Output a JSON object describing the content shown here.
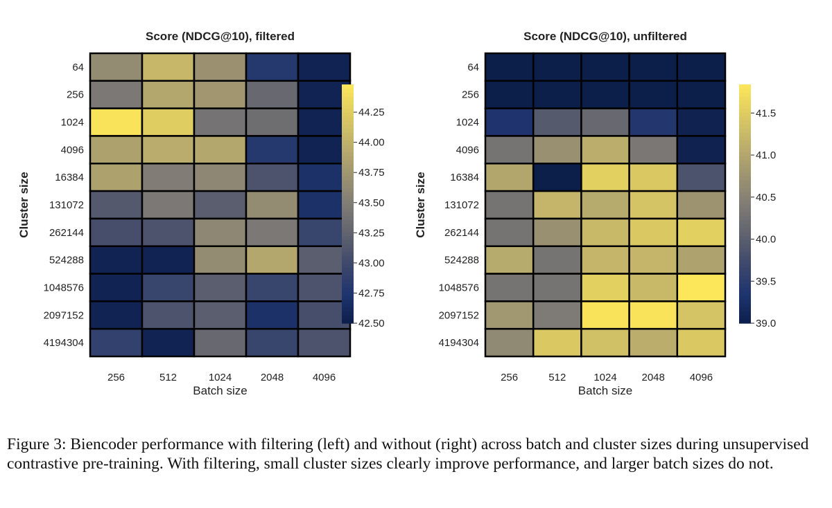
{
  "chart_data": [
    {
      "type": "heatmap",
      "title": "Score (NDCG@10), filtered",
      "xlabel": "Batch size",
      "ylabel": "Cluster size",
      "x_categories": [
        "256",
        "512",
        "1024",
        "2048",
        "4096"
      ],
      "y_categories": [
        "64",
        "256",
        "1024",
        "4096",
        "16384",
        "131072",
        "262144",
        "524288",
        "1048576",
        "2097152",
        "4194304"
      ],
      "values": [
        [
          43.65,
          44.05,
          43.7,
          42.8,
          42.55
        ],
        [
          43.45,
          43.9,
          43.75,
          43.3,
          42.55
        ],
        [
          44.45,
          44.25,
          43.4,
          43.35,
          42.55
        ],
        [
          43.85,
          43.95,
          43.9,
          42.8,
          42.55
        ],
        [
          43.85,
          43.5,
          43.6,
          43.1,
          42.7
        ],
        [
          43.15,
          43.45,
          43.2,
          43.65,
          42.7
        ],
        [
          43.05,
          43.1,
          43.6,
          43.45,
          42.95
        ],
        [
          42.55,
          42.55,
          43.65,
          43.9,
          43.2
        ],
        [
          42.55,
          42.95,
          43.2,
          42.95,
          43.1
        ],
        [
          42.55,
          43.1,
          43.2,
          42.7,
          43.05
        ],
        [
          42.9,
          42.55,
          43.3,
          42.95,
          43.1
        ]
      ],
      "colorbar": {
        "min": 42.5,
        "max": 44.48,
        "ticks": [
          "42.50",
          "42.75",
          "43.00",
          "43.25",
          "43.50",
          "43.75",
          "44.00",
          "44.25"
        ]
      },
      "colormap": "cividis"
    },
    {
      "type": "heatmap",
      "title": "Score (NDCG@10), unfiltered",
      "xlabel": "Batch size",
      "ylabel": "Cluster size",
      "x_categories": [
        "256",
        "512",
        "1024",
        "2048",
        "4096"
      ],
      "y_categories": [
        "64",
        "256",
        "1024",
        "4096",
        "16384",
        "131072",
        "262144",
        "524288",
        "1048576",
        "2097152",
        "4194304"
      ],
      "values": [
        [
          39.0,
          39.0,
          39.0,
          39.0,
          39.0
        ],
        [
          39.0,
          39.0,
          39.0,
          39.0,
          39.0
        ],
        [
          39.35,
          39.95,
          40.15,
          39.4,
          39.05
        ],
        [
          40.3,
          40.7,
          41.1,
          40.35,
          39.05
        ],
        [
          41.0,
          39.0,
          41.55,
          41.45,
          39.85
        ],
        [
          40.3,
          41.2,
          41.05,
          41.4,
          40.75
        ],
        [
          40.3,
          40.7,
          41.25,
          41.45,
          41.55
        ],
        [
          41.05,
          40.3,
          41.2,
          41.2,
          40.95
        ],
        [
          40.3,
          40.3,
          41.55,
          41.25,
          41.84
        ],
        [
          40.8,
          40.4,
          41.8,
          41.8,
          41.4
        ],
        [
          40.6,
          41.45,
          41.35,
          41.1,
          41.45
        ]
      ],
      "colorbar": {
        "min": 39.0,
        "max": 41.84,
        "ticks": [
          "39.0",
          "39.5",
          "40.0",
          "40.5",
          "41.0",
          "41.5"
        ]
      },
      "colormap": "cividis"
    }
  ],
  "caption": "Figure 3: Biencoder performance with filtering (left) and without (right) across batch and cluster sizes during unsupervised contrastive pre-training. With filtering, small cluster sizes clearly improve performance, and larger batch sizes do not."
}
